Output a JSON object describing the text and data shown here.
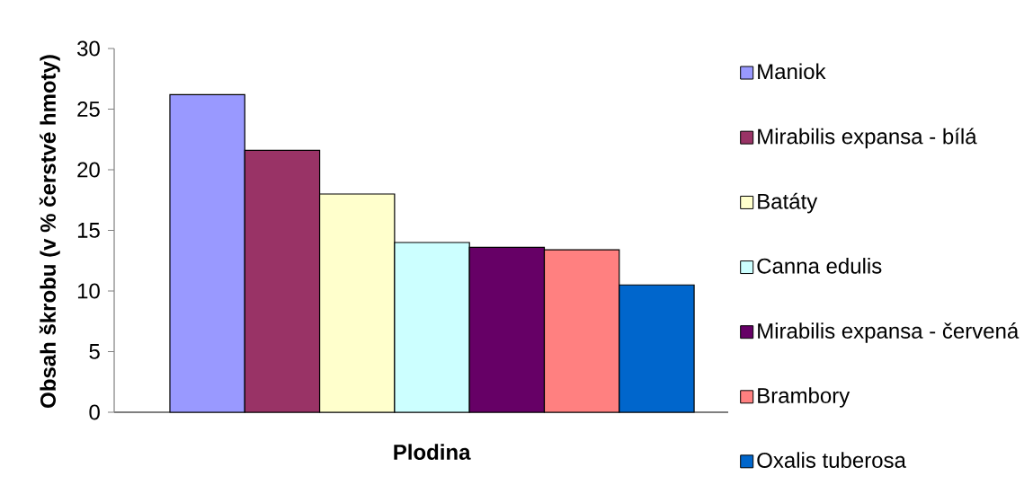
{
  "chart_data": {
    "type": "bar",
    "xlabel": "Plodina",
    "ylabel": "Obsah škrobu (v % čerstvé hmoty)",
    "categories": [
      null
    ],
    "series": [
      {
        "name": "Maniok",
        "color": "#9999ff",
        "values": [
          26.2
        ]
      },
      {
        "name": "Mirabilis expansa - bílá",
        "color": "#993366",
        "values": [
          21.6
        ]
      },
      {
        "name": "Batáty",
        "color": "#ffffcc",
        "values": [
          18.0
        ]
      },
      {
        "name": "Canna edulis",
        "color": "#ccffff",
        "values": [
          14.0
        ]
      },
      {
        "name": "Mirabilis expansa - červená",
        "color": "#660066",
        "values": [
          13.6
        ]
      },
      {
        "name": "Brambory",
        "color": "#ff8080",
        "values": [
          13.4
        ]
      },
      {
        "name": "Oxalis tuberosa",
        "color": "#0066cc",
        "values": [
          10.5
        ]
      }
    ],
    "ylim": [
      0,
      30
    ],
    "yticks": [
      0,
      5,
      10,
      15,
      20,
      25,
      30
    ],
    "legend": "right"
  }
}
